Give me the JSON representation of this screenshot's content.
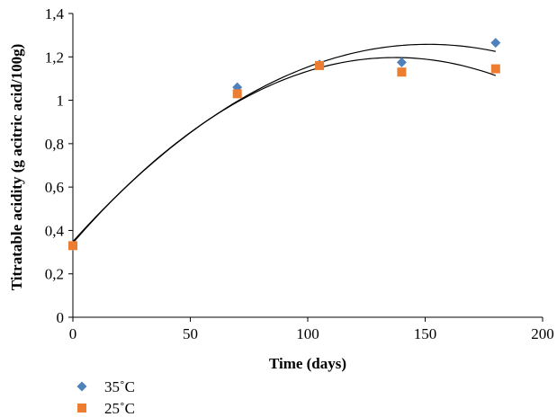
{
  "chart_data": {
    "type": "scatter",
    "xlabel": "Time (days)",
    "ylabel": "Titratable acidity (g acitric acid/100g)",
    "xlim": [
      0,
      200
    ],
    "ylim": [
      0,
      1.4
    ],
    "xticks": [
      "0",
      "50",
      "100",
      "150",
      "200"
    ],
    "yticks": [
      "0",
      "0,2",
      "0,4",
      "0,6",
      "0,8",
      "1",
      "1,2",
      "1,4"
    ],
    "grid": false,
    "legend_position": "bottom-left",
    "series": [
      {
        "name": "35˚C",
        "marker": "diamond",
        "color": "#4f81bd",
        "x": [
          0,
          70,
          105,
          140,
          180
        ],
        "y": [
          0.33,
          1.06,
          1.165,
          1.175,
          1.265
        ],
        "trendline": {
          "type": "polynomial",
          "order": 2,
          "y_at_0": 0.35,
          "y_at_180": 1.23
        }
      },
      {
        "name": "25˚C",
        "marker": "square",
        "color": "#ed7d31",
        "x": [
          0,
          70,
          105,
          140,
          180
        ],
        "y": [
          0.33,
          1.03,
          1.16,
          1.13,
          1.145
        ],
        "trendline": {
          "type": "polynomial",
          "order": 2,
          "y_at_0": 0.35,
          "y_at_180": 1.12
        }
      }
    ]
  }
}
